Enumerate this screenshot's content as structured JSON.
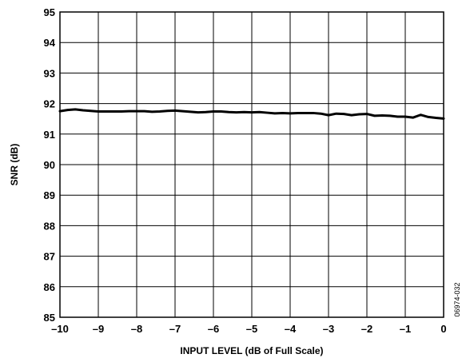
{
  "chart_data": {
    "type": "line",
    "xlabel": "INPUT LEVEL (dB of Full Scale)",
    "ylabel": "SNR (dB)",
    "xlim": [
      -10,
      0
    ],
    "ylim": [
      85,
      95
    ],
    "x_ticks": [
      -10,
      -9,
      -8,
      -7,
      -6,
      -5,
      -4,
      -3,
      -2,
      -1,
      0
    ],
    "x_tick_labels": [
      "–10",
      "–9",
      "–8",
      "–7",
      "–6",
      "–5",
      "–4",
      "–3",
      "–2",
      "–1",
      "0"
    ],
    "y_ticks": [
      85,
      86,
      87,
      88,
      89,
      90,
      91,
      92,
      93,
      94,
      95
    ],
    "y_tick_labels": [
      "85",
      "86",
      "87",
      "88",
      "89",
      "90",
      "91",
      "92",
      "93",
      "94",
      "95"
    ],
    "grid": true,
    "series": [
      {
        "x": [
          -10,
          -9.8,
          -9.6,
          -9.4,
          -9.2,
          -9.0,
          -8.8,
          -8.6,
          -8.4,
          -8.2,
          -8.0,
          -7.8,
          -7.6,
          -7.4,
          -7.2,
          -7.0,
          -6.8,
          -6.6,
          -6.4,
          -6.2,
          -6.0,
          -5.8,
          -5.6,
          -5.4,
          -5.2,
          -5.0,
          -4.8,
          -4.6,
          -4.4,
          -4.2,
          -4.0,
          -3.8,
          -3.6,
          -3.4,
          -3.2,
          -3.0,
          -2.8,
          -2.6,
          -2.4,
          -2.2,
          -2.0,
          -1.8,
          -1.6,
          -1.4,
          -1.2,
          -1.0,
          -0.8,
          -0.6,
          -0.4,
          -0.2,
          0.0
        ],
        "y": [
          91.75,
          91.79,
          91.81,
          91.78,
          91.76,
          91.74,
          91.74,
          91.74,
          91.74,
          91.75,
          91.75,
          91.75,
          91.73,
          91.74,
          91.76,
          91.77,
          91.75,
          91.73,
          91.71,
          91.72,
          91.74,
          91.74,
          91.72,
          91.71,
          91.72,
          91.71,
          91.72,
          91.7,
          91.68,
          91.69,
          91.68,
          91.69,
          91.69,
          91.69,
          91.67,
          91.62,
          91.67,
          91.66,
          91.62,
          91.65,
          91.66,
          91.6,
          91.61,
          91.6,
          91.57,
          91.57,
          91.54,
          91.63,
          91.56,
          91.53,
          91.51
        ]
      }
    ]
  },
  "figure_id": "06974-032"
}
